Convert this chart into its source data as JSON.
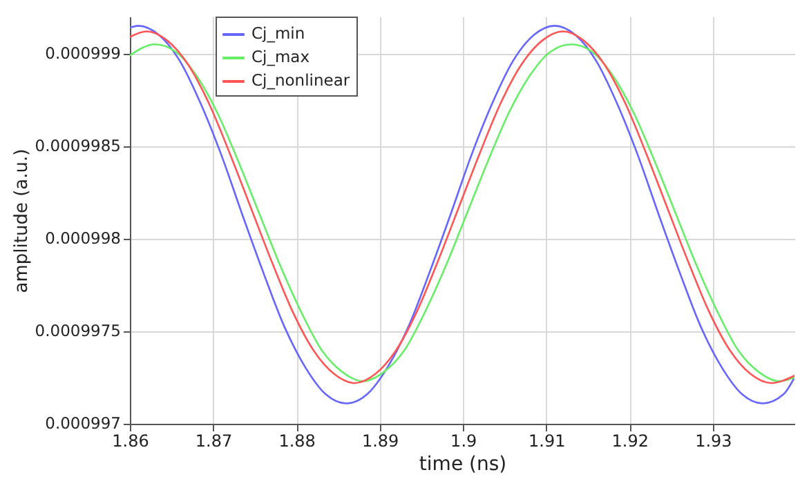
{
  "chart_data": {
    "type": "line",
    "xlabel": "time (ns)",
    "ylabel": "amplitude (a.u.)",
    "xlim": [
      1.86,
      1.9398
    ],
    "ylim": [
      0.000997,
      0.0009992
    ],
    "xticks": [
      1.86,
      1.87,
      1.88,
      1.89,
      1.9,
      1.91,
      1.92,
      1.93
    ],
    "yticks": [
      0.000997,
      0.0009975,
      0.000998,
      0.0009985,
      0.000999
    ],
    "grid": true,
    "legend": "top left",
    "series": [
      {
        "name": "Cj_min",
        "color": "#6666ff",
        "x": [
          1.86,
          1.861,
          1.8635,
          1.866,
          1.8685,
          1.871,
          1.8735,
          1.876,
          1.8785,
          1.881,
          1.8835,
          1.886,
          1.8885,
          1.891,
          1.8935,
          1.896,
          1.8985,
          1.901,
          1.9035,
          1.906,
          1.9085,
          1.911,
          1.9135,
          1.916,
          1.9185,
          1.921,
          1.9235,
          1.926,
          1.9285,
          1.931,
          1.9335,
          1.936,
          1.9385,
          1.9398
        ],
        "values": [
          0.00099914,
          0.00099915,
          0.0009991,
          0.00099896,
          0.00099873,
          0.00099845,
          0.00099813,
          0.00099782,
          0.00099753,
          0.00099731,
          0.00099716,
          0.00099711,
          0.00099716,
          0.00099731,
          0.00099753,
          0.00099782,
          0.00099813,
          0.00099845,
          0.00099873,
          0.00099896,
          0.0009991,
          0.00099915,
          0.0009991,
          0.00099896,
          0.00099873,
          0.00099845,
          0.00099813,
          0.00099782,
          0.00099753,
          0.00099731,
          0.00099716,
          0.00099711,
          0.00099716,
          0.00099725
        ]
      },
      {
        "name": "Cj_max",
        "color": "#66ee66",
        "x": [
          1.86,
          1.863,
          1.8655,
          1.868,
          1.8705,
          1.873,
          1.8755,
          1.878,
          1.8805,
          1.883,
          1.8855,
          1.888,
          1.8905,
          1.893,
          1.8955,
          1.898,
          1.9005,
          1.903,
          1.9055,
          1.908,
          1.9105,
          1.913,
          1.9155,
          1.918,
          1.9205,
          1.923,
          1.9255,
          1.928,
          1.9305,
          1.933,
          1.9355,
          1.938,
          1.9398
        ],
        "values": [
          0.00099899,
          0.00099905,
          0.00099901,
          0.00099888,
          0.00099868,
          0.00099842,
          0.00099814,
          0.00099786,
          0.00099761,
          0.0009974,
          0.00099728,
          0.00099723,
          0.00099728,
          0.0009974,
          0.00099761,
          0.00099786,
          0.00099814,
          0.00099842,
          0.00099868,
          0.00099888,
          0.00099901,
          0.00099905,
          0.00099901,
          0.00099888,
          0.00099868,
          0.00099842,
          0.00099814,
          0.00099786,
          0.00099761,
          0.0009974,
          0.00099728,
          0.00099723,
          0.00099725
        ]
      },
      {
        "name": "Cj_nonlinear",
        "color": "#ff5555",
        "x": [
          1.86,
          1.862,
          1.8645,
          1.867,
          1.8695,
          1.872,
          1.8745,
          1.877,
          1.8795,
          1.882,
          1.8845,
          1.887,
          1.8895,
          1.892,
          1.8945,
          1.897,
          1.8995,
          1.902,
          1.9045,
          1.907,
          1.9095,
          1.912,
          1.9145,
          1.917,
          1.9195,
          1.922,
          1.9245,
          1.927,
          1.9295,
          1.932,
          1.9345,
          1.937,
          1.9398
        ],
        "values": [
          0.00099909,
          0.00099912,
          0.00099907,
          0.00099894,
          0.00099873,
          0.00099846,
          0.00099817,
          0.00099788,
          0.00099761,
          0.0009974,
          0.00099727,
          0.00099722,
          0.00099727,
          0.0009974,
          0.00099761,
          0.00099788,
          0.00099817,
          0.00099846,
          0.00099873,
          0.00099894,
          0.00099907,
          0.00099912,
          0.00099907,
          0.00099894,
          0.00099873,
          0.00099846,
          0.00099817,
          0.00099788,
          0.00099761,
          0.0009974,
          0.00099727,
          0.00099722,
          0.00099726
        ]
      }
    ]
  }
}
